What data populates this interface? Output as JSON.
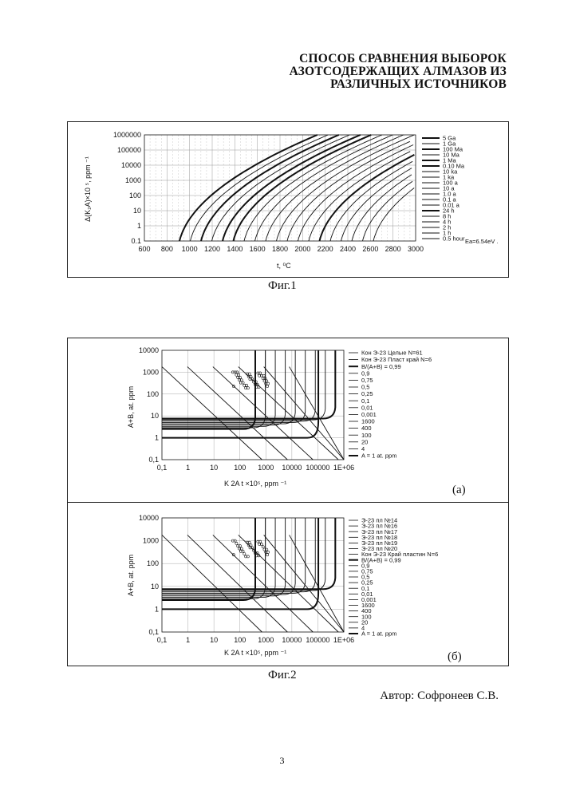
{
  "title": {
    "line1": "СПОСОБ СРАВНЕНИЯ ВЫБОРОК",
    "line2": "АЗОТСОДЕРЖАЩИХ АЛМАЗОВ ИЗ",
    "line3": "РАЗЛИЧНЫХ ИСТОЧНИКОВ"
  },
  "fig1": {
    "caption": "Фиг.1",
    "xlabel": "t, ⁰C",
    "ylabel": "Δ(K₂A)×10 ⁵, ppm ⁻¹",
    "xticks": [
      "600",
      "800",
      "1000",
      "1200",
      "1400",
      "1600",
      "1800",
      "2000",
      "2200",
      "2400",
      "2600",
      "2800",
      "3000"
    ],
    "yticks": [
      "1000000",
      "100000",
      "10000",
      "1000",
      "100",
      "10",
      "1",
      "0.1"
    ],
    "legend": [
      "5 Ga",
      "1 Ga",
      "100 Ma",
      "10 Ma",
      "1 Ma",
      "0.10 Ma",
      "10 ka",
      "1 ka",
      "100 a",
      "10 a",
      "1.0 a",
      "0.1 a",
      "0.01 a",
      "24 h",
      "8 h",
      "4 h",
      "2 h",
      "1 h",
      "0.5 hour"
    ],
    "note": "Ea=6.54eV ."
  },
  "fig2": {
    "caption": "Фиг.2",
    "xlabel": "K 2A t ×10⁵, ppm ⁻¹",
    "ylabel": "A+B, at. ppm",
    "xticks": [
      "0,1",
      "1",
      "10",
      "100",
      "1000",
      "10000",
      "100000",
      "1E+06"
    ],
    "yticks": [
      "10000",
      "1000",
      "100",
      "10",
      "1",
      "0,1"
    ],
    "panel_a": {
      "label": "(а)",
      "legend": [
        "Кон Э-23 Целые N=61",
        "Кон Э-23 Пласт край N=6",
        "B/(A+B) = 0,99",
        "0,9",
        "0,75",
        "0,5",
        "0,25",
        "0,1",
        "0,01",
        "0,001",
        "1600",
        "400",
        "100",
        "20",
        "4",
        "A = 1 at. ppm"
      ]
    },
    "panel_b": {
      "label": "(б)",
      "legend": [
        "Э-23  пл №14",
        "Э-23  пл №16",
        "Э-23  пл №17",
        "Э-23  пл №18",
        "Э-23  пл №19",
        "Э-23  пл №20",
        "Кон Э-23  Край пластин N=6",
        "B/(A+B) = 0,99",
        "0,9",
        "0,75",
        "0,5",
        "0,25",
        "0,1",
        "0,01",
        "0,001",
        "1600",
        "400",
        "100",
        "20",
        "4",
        "A = 1 at. ppm"
      ]
    }
  },
  "author": "Автор: Софронеев С.В.",
  "page_number": "3"
}
